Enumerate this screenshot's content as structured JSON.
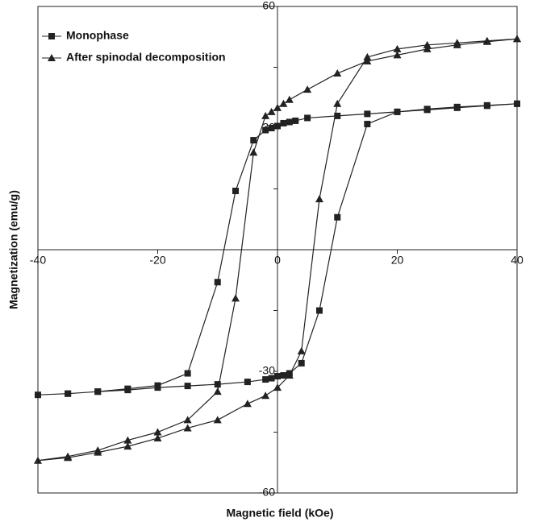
{
  "chart_data": {
    "type": "line",
    "x_label": "Magnetic field (kOe)",
    "y_label": "Magnetization (emu/g)",
    "xlim": [
      -40,
      40
    ],
    "ylim": [
      -60,
      60
    ],
    "xticks": [
      -40,
      -20,
      0,
      20,
      40
    ],
    "yticks": [
      -60,
      -30,
      30,
      60
    ],
    "y_minor_ticks": [
      -45,
      -15,
      15,
      45
    ],
    "legend": "upper left",
    "series": [
      {
        "name": "Monophase",
        "color": "#222222",
        "marker": "square",
        "x": [
          40,
          35,
          30,
          25,
          20,
          15,
          10,
          5,
          3,
          2,
          1,
          0,
          -1,
          -2,
          -4,
          -7,
          -10,
          -15,
          -20,
          -25,
          -30,
          -35,
          -40,
          -35,
          -30,
          -25,
          -20,
          -15,
          -10,
          -5,
          -2,
          -1,
          0,
          1,
          2,
          4,
          7,
          10,
          15,
          20,
          25,
          30,
          35,
          40
        ],
        "values": [
          36,
          35.5,
          35,
          34.5,
          34,
          33.5,
          33,
          32.5,
          31.8,
          31.5,
          31.2,
          30.5,
          30,
          29.5,
          27,
          14.5,
          -8,
          -30.5,
          -33.5,
          -34.3,
          -35,
          -35.5,
          -35.8,
          -35.5,
          -35,
          -34.6,
          -34,
          -33.6,
          -33.2,
          -32.6,
          -32,
          -31.7,
          -31.2,
          -31,
          -30.5,
          -28,
          -15,
          8,
          31,
          34,
          34.7,
          35.2,
          35.6,
          36
        ]
      },
      {
        "name": "After spinodal decomposition",
        "color": "#222222",
        "marker": "triangle",
        "x": [
          40,
          35,
          30,
          25,
          20,
          15,
          10,
          5,
          2,
          1,
          0,
          -1,
          -2,
          -4,
          -7,
          -10,
          -15,
          -20,
          -25,
          -30,
          -35,
          -40,
          -35,
          -30,
          -25,
          -20,
          -15,
          -10,
          -5,
          -2,
          0,
          2,
          4,
          7,
          10,
          15,
          20,
          25,
          30,
          35,
          40
        ],
        "values": [
          52,
          51.3,
          50.5,
          49.5,
          48,
          46.5,
          43.5,
          39.5,
          37,
          36,
          35,
          34,
          33,
          24,
          -12,
          -35,
          -42,
          -45,
          -47,
          -49.5,
          -51,
          -52,
          -51.3,
          -50,
          -48.5,
          -46.5,
          -44,
          -42,
          -38,
          -36,
          -34,
          -31,
          -25,
          12.5,
          36,
          47.5,
          49.5,
          50.5,
          51,
          51.5,
          52
        ]
      }
    ]
  }
}
